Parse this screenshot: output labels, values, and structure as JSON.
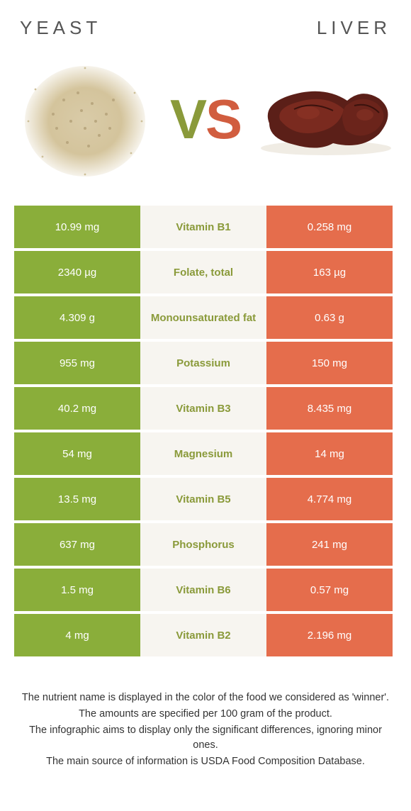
{
  "colors": {
    "yeast": "#8aae3a",
    "liver": "#e56d4c",
    "mid_bg": "#f7f5f0",
    "yeast_label_color": "#8a9a3a",
    "liver_label_color": "#d15d3f",
    "text": "#333333"
  },
  "header": {
    "left": "YEAST",
    "right": "LIVER",
    "vs_v": "V",
    "vs_s": "S"
  },
  "rows": [
    {
      "left": "10.99 mg",
      "mid": "Vitamin B1",
      "right": "0.258 mg",
      "winner": "yeast"
    },
    {
      "left": "2340 µg",
      "mid": "Folate, total",
      "right": "163 µg",
      "winner": "yeast"
    },
    {
      "left": "4.309 g",
      "mid": "Monounsaturated fat",
      "right": "0.63 g",
      "winner": "yeast"
    },
    {
      "left": "955 mg",
      "mid": "Potassium",
      "right": "150 mg",
      "winner": "yeast"
    },
    {
      "left": "40.2 mg",
      "mid": "Vitamin B3",
      "right": "8.435 mg",
      "winner": "yeast"
    },
    {
      "left": "54 mg",
      "mid": "Magnesium",
      "right": "14 mg",
      "winner": "yeast"
    },
    {
      "left": "13.5 mg",
      "mid": "Vitamin B5",
      "right": "4.774 mg",
      "winner": "yeast"
    },
    {
      "left": "637 mg",
      "mid": "Phosphorus",
      "right": "241 mg",
      "winner": "yeast"
    },
    {
      "left": "1.5 mg",
      "mid": "Vitamin B6",
      "right": "0.57 mg",
      "winner": "yeast"
    },
    {
      "left": "4 mg",
      "mid": "Vitamin B2",
      "right": "2.196 mg",
      "winner": "yeast"
    }
  ],
  "notes": [
    "The nutrient name is displayed in the color of the food we considered as 'winner'.",
    "The amounts are specified per 100 gram of the product.",
    "The infographic aims to display only the significant differences, ignoring minor ones.",
    "The main source of information is USDA Food Composition Database."
  ]
}
